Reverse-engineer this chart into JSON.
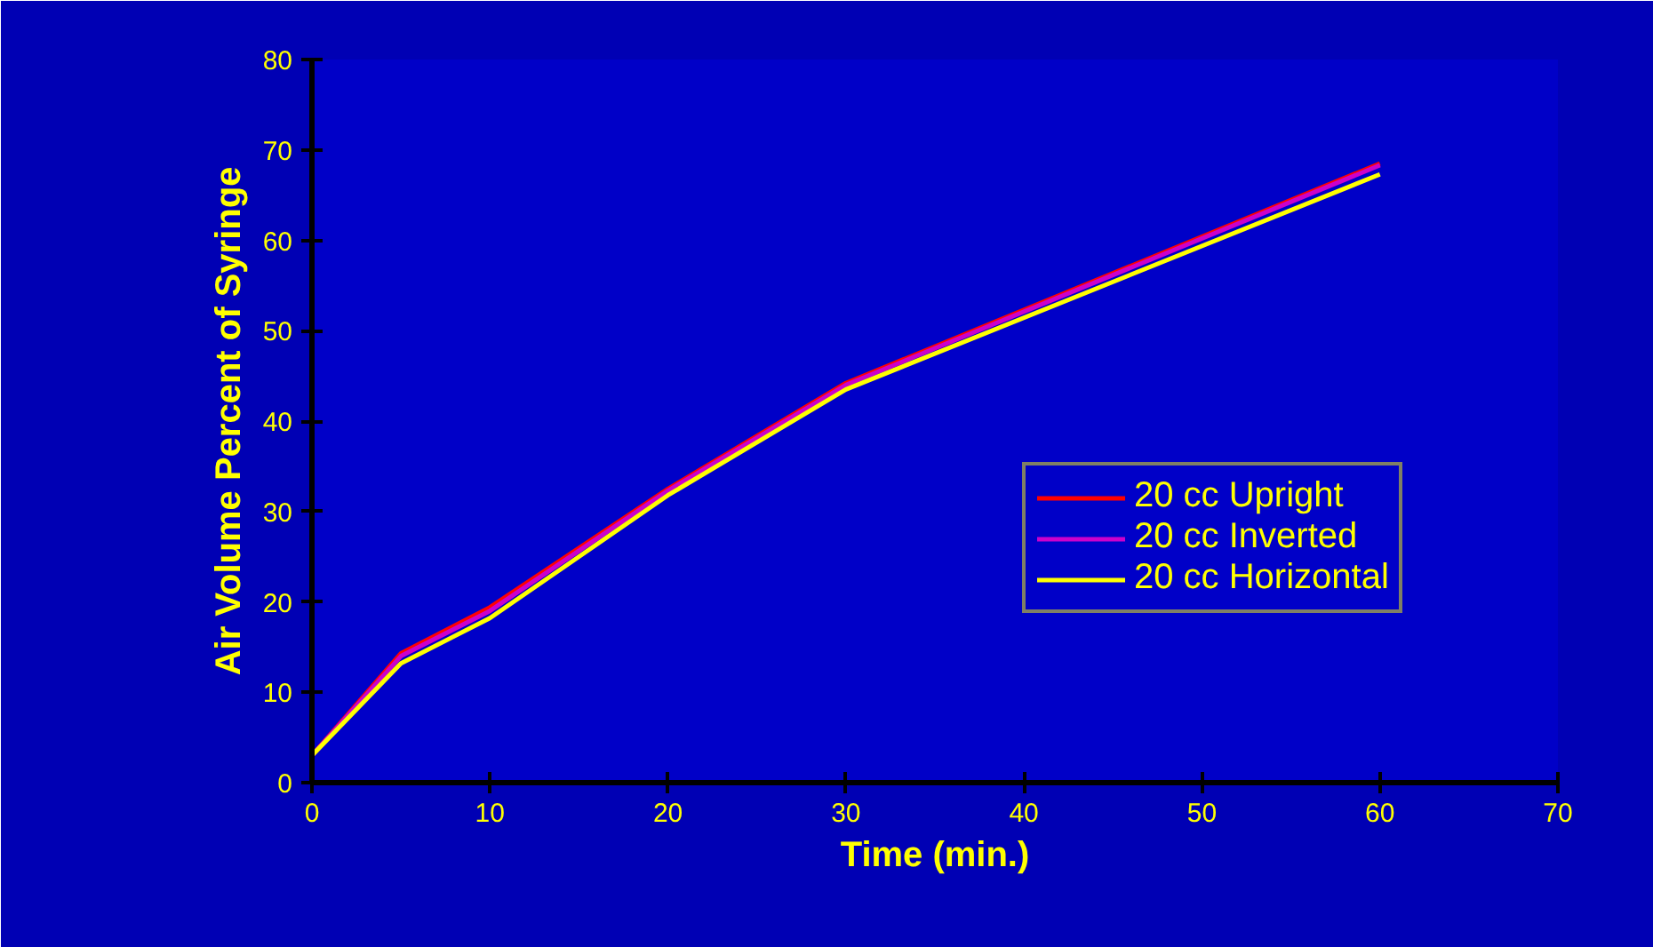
{
  "chart_data": {
    "type": "line",
    "xlabel": "Time (min.)",
    "ylabel": "Air Volume Percent of Syringe",
    "x": [
      0,
      5,
      10,
      20,
      30,
      60
    ],
    "series": [
      {
        "name": "20 cc Upright",
        "color": "#ff0000",
        "values": [
          3,
          14.3,
          19.4,
          32.5,
          44.2,
          68.5
        ]
      },
      {
        "name": "20 cc Inverted",
        "color": "#cc00cc",
        "values": [
          3,
          14,
          19,
          32.3,
          44,
          68.3
        ]
      },
      {
        "name": "20 cc Horizontal",
        "color": "#ffff00",
        "values": [
          3,
          13.2,
          18.2,
          31.8,
          43.5,
          67.3
        ]
      }
    ],
    "xlim": [
      0,
      70
    ],
    "xticks": [
      0,
      10,
      20,
      30,
      40,
      50,
      60,
      70
    ],
    "ylim": [
      0,
      80
    ],
    "yticks": [
      0,
      10,
      20,
      30,
      40,
      50,
      60,
      70,
      80
    ],
    "grid": false,
    "legend": "right",
    "marker": "none",
    "line_style": "solid"
  }
}
